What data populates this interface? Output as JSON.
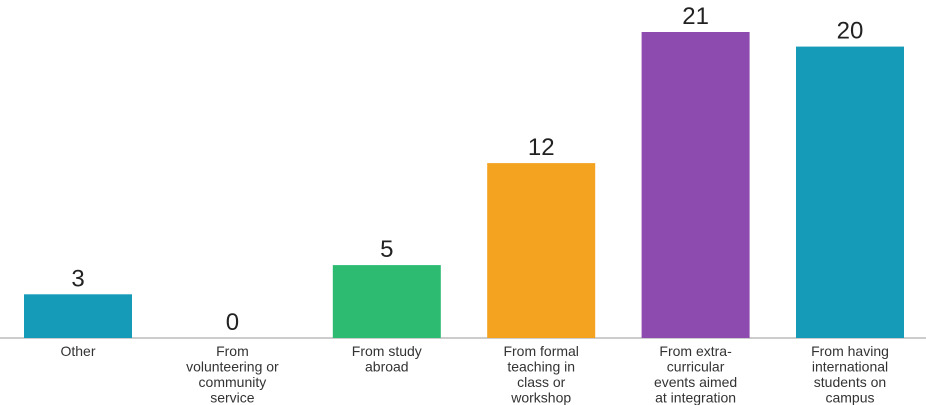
{
  "chart_data": {
    "type": "bar",
    "categories": [
      "Other",
      "From volunteering or community service",
      "From study abroad",
      "From formal teaching in class or workshop",
      "From extra-curricular events aimed at integration",
      "From having international students on campus"
    ],
    "category_label_lines": [
      [
        "Other"
      ],
      [
        "From",
        "volunteering or",
        "community",
        "service"
      ],
      [
        "From study",
        "abroad"
      ],
      [
        "From formal",
        "teaching in",
        "class or",
        "workshop"
      ],
      [
        "From extra-",
        "curricular",
        "events aimed",
        "at integration"
      ],
      [
        "From having",
        "international",
        "students on",
        "campus"
      ]
    ],
    "values": [
      3,
      0,
      5,
      12,
      21,
      20
    ],
    "colors": [
      "#159AB8",
      "#159AB8",
      "#2DBB72",
      "#F4A321",
      "#8E4BAF",
      "#159AB8"
    ],
    "title": "",
    "xlabel": "",
    "ylabel": "",
    "ylim": [
      0,
      21
    ],
    "grid": false,
    "legend": "none"
  }
}
